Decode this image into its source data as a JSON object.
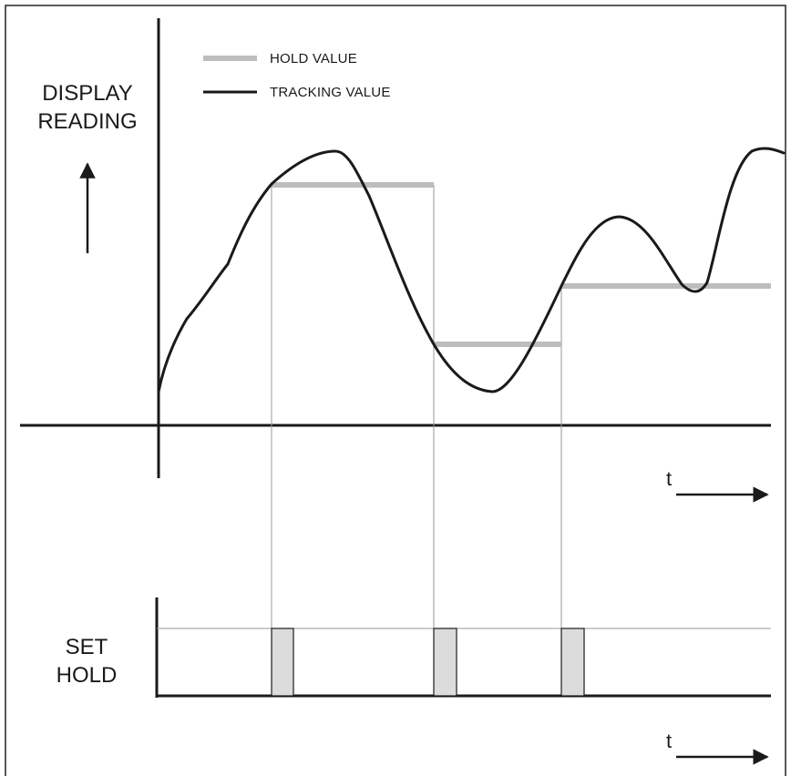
{
  "legend": {
    "hold_label": "HOLD VALUE",
    "tracking_label": "TRACKING VALUE"
  },
  "y_axis_label": [
    "DISPLAY",
    "READING"
  ],
  "time_label_top": "t",
  "time_label_bottom": "t",
  "set_hold_label": [
    "SET",
    "HOLD"
  ],
  "colors": {
    "tracking": "#1a1a1a",
    "hold": "#bdbdbd",
    "pulse_fill": "#dcdcdc",
    "guide": "#9a9a9a",
    "border": "#222222"
  }
}
